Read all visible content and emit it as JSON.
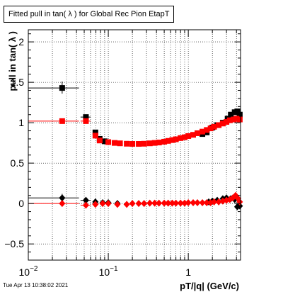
{
  "window": {
    "title": "Fitted pull in tan( λ ) for Global Rec Pion EtapT",
    "timestamp": "Tue Apr 13 10:38:02 2021"
  },
  "colors": {
    "background": "#ffffff",
    "frame": "#000000",
    "series_black": "#000000",
    "series_red": "#ff0000"
  },
  "chart_data": {
    "type": "scatter",
    "title": "Fitted pull in tan( λ ) for Global Rec Pion EtapT",
    "xlabel": "pT/|q| (GeV/c)",
    "ylabel": "pull in tan( λ )",
    "xscale": "log",
    "xlim": [
      0.01,
      4.5
    ],
    "ylim": [
      -0.7,
      2.15
    ],
    "grid": true,
    "x_ticks": [
      {
        "value": 0.01,
        "label": "10^-2"
      },
      {
        "value": 0.1,
        "label": "10^-1"
      },
      {
        "value": 1,
        "label": "1"
      }
    ],
    "y_ticks": [
      {
        "value": -0.5,
        "label": "−0.5"
      },
      {
        "value": 0,
        "label": "0"
      },
      {
        "value": 0.5,
        "label": "0.5"
      },
      {
        "value": 1,
        "label": "1"
      },
      {
        "value": 1.5,
        "label": "1.5"
      },
      {
        "value": 2,
        "label": "2"
      }
    ],
    "series": [
      {
        "role": "width",
        "color": "#000000",
        "marker": "square",
        "points": [
          {
            "x": 0.0265,
            "y": 1.43,
            "xlo": 0.01,
            "xhi": 0.043,
            "ylo": 1.36,
            "yhi": 1.51
          },
          {
            "x": 0.0525,
            "y": 1.07,
            "xlo": 0.045,
            "xhi": 0.06,
            "ylo": 1.04,
            "yhi": 1.1
          },
          {
            "x": 0.069,
            "y": 0.88,
            "ylo": 0.86,
            "yhi": 0.9
          },
          {
            "x": 0.078,
            "y": 0.8
          },
          {
            "x": 0.09,
            "y": 0.77
          },
          {
            "x": 1.5,
            "y": 0.86
          },
          {
            "x": 1.7,
            "y": 0.88
          },
          {
            "x": 2.0,
            "y": 0.94
          },
          {
            "x": 2.3,
            "y": 0.97
          },
          {
            "x": 2.7,
            "y": 1.0
          },
          {
            "x": 3.1,
            "y": 1.05
          },
          {
            "x": 3.4,
            "y": 1.1
          },
          {
            "x": 3.8,
            "y": 1.13
          },
          {
            "x": 4.1,
            "y": 1.14
          },
          {
            "x": 4.4,
            "y": 1.1
          }
        ]
      },
      {
        "role": "width",
        "color": "#ff0000",
        "marker": "square",
        "points": [
          {
            "x": 0.0265,
            "y": 1.02,
            "xlo": 0.01,
            "xhi": 0.043,
            "ylo": 0.99,
            "yhi": 1.05
          },
          {
            "x": 0.0525,
            "y": 1.02,
            "xlo": 0.045,
            "xhi": 0.06
          },
          {
            "x": 0.069,
            "y": 0.84
          },
          {
            "x": 0.078,
            "y": 0.78
          },
          {
            "x": 0.1,
            "y": 0.76
          },
          {
            "x": 0.12,
            "y": 0.75
          },
          {
            "x": 0.14,
            "y": 0.745
          },
          {
            "x": 0.17,
            "y": 0.74
          },
          {
            "x": 0.2,
            "y": 0.738
          },
          {
            "x": 0.24,
            "y": 0.738
          },
          {
            "x": 0.28,
            "y": 0.74
          },
          {
            "x": 0.33,
            "y": 0.745
          },
          {
            "x": 0.38,
            "y": 0.75
          },
          {
            "x": 0.43,
            "y": 0.755
          },
          {
            "x": 0.5,
            "y": 0.765
          },
          {
            "x": 0.56,
            "y": 0.775
          },
          {
            "x": 0.63,
            "y": 0.785
          },
          {
            "x": 0.7,
            "y": 0.795
          },
          {
            "x": 0.8,
            "y": 0.81
          },
          {
            "x": 0.9,
            "y": 0.82
          },
          {
            "x": 1.0,
            "y": 0.835
          },
          {
            "x": 1.15,
            "y": 0.85
          },
          {
            "x": 1.3,
            "y": 0.87
          },
          {
            "x": 1.5,
            "y": 0.89
          },
          {
            "x": 1.7,
            "y": 0.91
          },
          {
            "x": 1.9,
            "y": 0.93
          },
          {
            "x": 2.1,
            "y": 0.95
          },
          {
            "x": 2.4,
            "y": 0.97
          },
          {
            "x": 2.7,
            "y": 0.99
          },
          {
            "x": 3.0,
            "y": 1.01
          },
          {
            "x": 3.3,
            "y": 1.03
          },
          {
            "x": 3.7,
            "y": 1.04
          },
          {
            "x": 4.0,
            "y": 1.05
          },
          {
            "x": 4.4,
            "y": 1.04
          }
        ]
      },
      {
        "role": "mean",
        "color": "#000000",
        "marker": "diamond",
        "points": [
          {
            "x": 0.0265,
            "y": 0.07,
            "xlo": 0.01,
            "xhi": 0.043,
            "ylo": 0.03,
            "yhi": 0.12
          },
          {
            "x": 0.0525,
            "y": 0.04,
            "xlo": 0.045,
            "xhi": 0.06
          },
          {
            "x": 0.069,
            "y": 0.02
          },
          {
            "x": 0.085,
            "y": 0.01
          },
          {
            "x": 0.1,
            "y": 0.01
          },
          {
            "x": 0.13,
            "y": 0.0
          },
          {
            "x": 1.8,
            "y": 0.02
          },
          {
            "x": 2.0,
            "y": 0.03
          },
          {
            "x": 2.3,
            "y": 0.04
          },
          {
            "x": 2.7,
            "y": 0.06
          },
          {
            "x": 3.0,
            "y": 0.07
          },
          {
            "x": 3.4,
            "y": 0.06
          },
          {
            "x": 3.8,
            "y": 0.05
          },
          {
            "x": 4.1,
            "y": -0.04
          },
          {
            "x": 4.4,
            "y": -0.03
          }
        ]
      },
      {
        "role": "mean",
        "color": "#ff0000",
        "marker": "diamond",
        "points": [
          {
            "x": 0.0265,
            "y": 0.0,
            "xlo": 0.01,
            "xhi": 0.043,
            "ylo": -0.03,
            "yhi": 0.03
          },
          {
            "x": 0.0525,
            "y": -0.02,
            "xlo": 0.045,
            "xhi": 0.06
          },
          {
            "x": 0.069,
            "y": -0.01
          },
          {
            "x": 0.085,
            "y": 0.0
          },
          {
            "x": 0.1,
            "y": 0.0
          },
          {
            "x": 0.13,
            "y": -0.01
          },
          {
            "x": 0.17,
            "y": -0.01
          },
          {
            "x": 0.2,
            "y": 0.0
          },
          {
            "x": 0.24,
            "y": 0.0
          },
          {
            "x": 0.28,
            "y": 0.0
          },
          {
            "x": 0.33,
            "y": 0.005
          },
          {
            "x": 0.38,
            "y": 0.005
          },
          {
            "x": 0.43,
            "y": 0.005
          },
          {
            "x": 0.5,
            "y": 0.005
          },
          {
            "x": 0.56,
            "y": 0.005
          },
          {
            "x": 0.63,
            "y": 0.005
          },
          {
            "x": 0.7,
            "y": 0.005
          },
          {
            "x": 0.8,
            "y": 0.005
          },
          {
            "x": 0.9,
            "y": 0.005
          },
          {
            "x": 1.0,
            "y": 0.01
          },
          {
            "x": 1.15,
            "y": 0.01
          },
          {
            "x": 1.3,
            "y": 0.01
          },
          {
            "x": 1.5,
            "y": 0.01
          },
          {
            "x": 1.7,
            "y": 0.01
          },
          {
            "x": 1.9,
            "y": 0.01
          },
          {
            "x": 2.1,
            "y": 0.02
          },
          {
            "x": 2.4,
            "y": 0.02
          },
          {
            "x": 2.7,
            "y": 0.03
          },
          {
            "x": 3.0,
            "y": 0.04
          },
          {
            "x": 3.3,
            "y": 0.05
          },
          {
            "x": 3.6,
            "y": 0.07
          },
          {
            "x": 3.9,
            "y": 0.1
          },
          {
            "x": 4.2,
            "y": 0.06
          },
          {
            "x": 4.4,
            "y": 0.02
          }
        ]
      }
    ]
  }
}
